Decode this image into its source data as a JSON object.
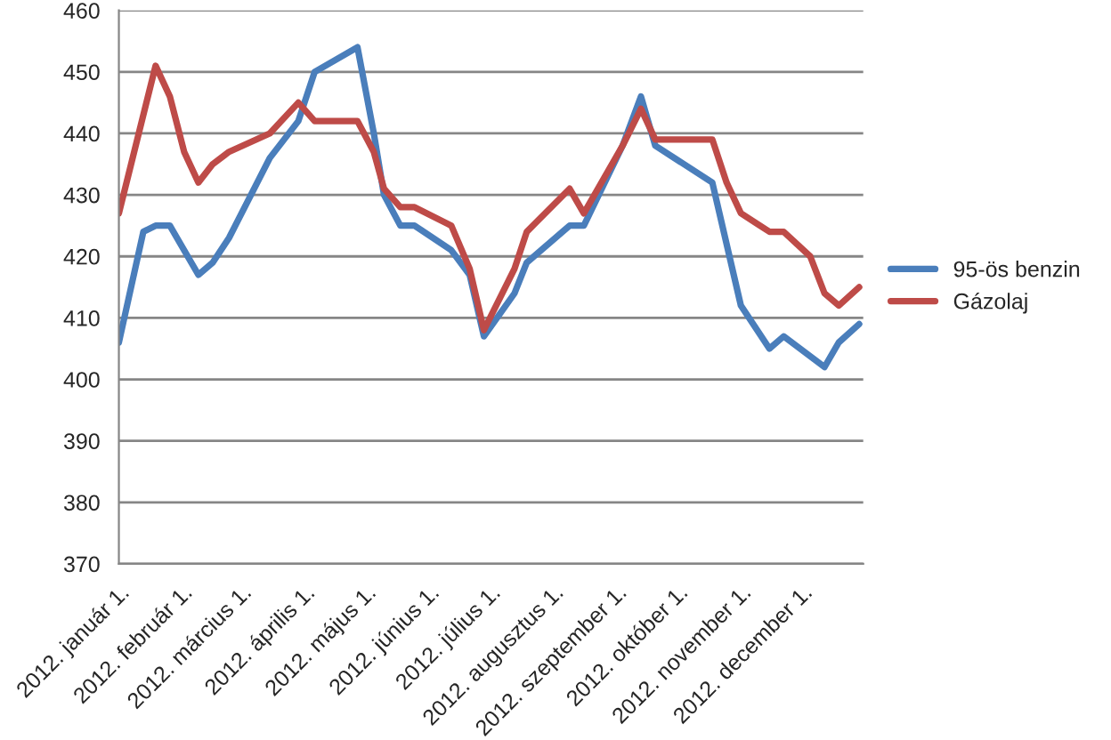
{
  "chart_data": {
    "type": "line",
    "xlim": [
      "2012-01-01",
      "2012-12-31"
    ],
    "xticks": [
      {
        "value": "2012-01-01",
        "label": "2012. január 1."
      },
      {
        "value": "2012-02-01",
        "label": "2012. február 1."
      },
      {
        "value": "2012-03-01",
        "label": "2012. március 1."
      },
      {
        "value": "2012-04-01",
        "label": "2012. április 1."
      },
      {
        "value": "2012-05-01",
        "label": "2012. május 1."
      },
      {
        "value": "2012-06-01",
        "label": "2012. június 1."
      },
      {
        "value": "2012-07-01",
        "label": "2012. július 1."
      },
      {
        "value": "2012-08-01",
        "label": "2012. augusztus 1."
      },
      {
        "value": "2012-09-01",
        "label": "2012. szeptember 1."
      },
      {
        "value": "2012-10-01",
        "label": "2012. október 1."
      },
      {
        "value": "2012-11-01",
        "label": "2012. november 1."
      },
      {
        "value": "2012-12-01",
        "label": "2012. december 1."
      }
    ],
    "ylim": [
      370,
      460
    ],
    "yticks": [
      370,
      380,
      390,
      400,
      410,
      420,
      430,
      440,
      450,
      460
    ],
    "grid": "y",
    "legend": "right",
    "marker": "none",
    "line_style": "solid",
    "series": [
      {
        "name": "95-ös benzin",
        "color": "#4a7ebb",
        "x": [
          "2012-01-01",
          "2012-01-13",
          "2012-01-19",
          "2012-01-26",
          "2012-02-09",
          "2012-02-16",
          "2012-02-24",
          "2012-03-15",
          "2012-03-29",
          "2012-04-06",
          "2012-04-27",
          "2012-05-05",
          "2012-05-10",
          "2012-05-18",
          "2012-05-25",
          "2012-06-12",
          "2012-06-21",
          "2012-06-28",
          "2012-07-13",
          "2012-07-19",
          "2012-08-09",
          "2012-08-16",
          "2012-09-04",
          "2012-09-13",
          "2012-09-20",
          "2012-10-18",
          "2012-11-01",
          "2012-11-15",
          "2012-11-22",
          "2012-12-12",
          "2012-12-19",
          "2012-12-29"
        ],
        "values": [
          406,
          424,
          425,
          425,
          417,
          419,
          423,
          436,
          442,
          450,
          454,
          440,
          430,
          425,
          425,
          421,
          417,
          407,
          414,
          419,
          425,
          425,
          438,
          446,
          438,
          432,
          412,
          405,
          407,
          402,
          406,
          409
        ]
      },
      {
        "name": "Gázolaj",
        "color": "#be4b48",
        "x": [
          "2012-01-01",
          "2012-01-19",
          "2012-01-26",
          "2012-02-02",
          "2012-02-09",
          "2012-02-16",
          "2012-02-24",
          "2012-03-15",
          "2012-03-29",
          "2012-04-06",
          "2012-04-27",
          "2012-05-05",
          "2012-05-10",
          "2012-05-18",
          "2012-05-25",
          "2012-06-12",
          "2012-06-21",
          "2012-06-28",
          "2012-07-13",
          "2012-07-19",
          "2012-08-09",
          "2012-08-16",
          "2012-09-04",
          "2012-09-13",
          "2012-09-20",
          "2012-10-18",
          "2012-10-25",
          "2012-11-01",
          "2012-11-15",
          "2012-11-22",
          "2012-12-05",
          "2012-12-12",
          "2012-12-19",
          "2012-12-29"
        ],
        "values": [
          427,
          451,
          446,
          437,
          432,
          435,
          437,
          440,
          445,
          442,
          442,
          437,
          431,
          428,
          428,
          425,
          418,
          408,
          418,
          424,
          431,
          427,
          438,
          444,
          439,
          439,
          432,
          427,
          424,
          424,
          420,
          414,
          412,
          415
        ]
      }
    ]
  }
}
